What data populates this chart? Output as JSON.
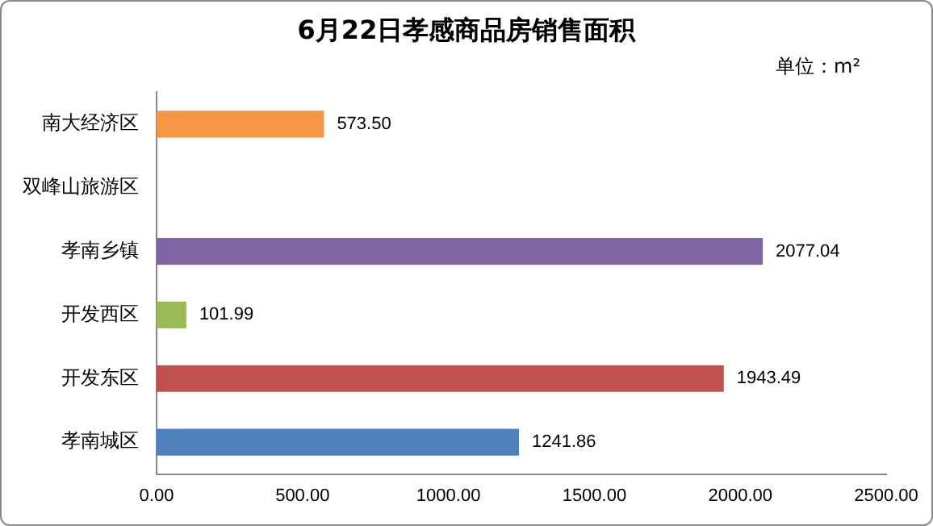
{
  "chart_data": {
    "type": "bar",
    "orientation": "horizontal",
    "title": "6月22日孝感商品房销售面积",
    "annotations": [
      "单位：m²"
    ],
    "categories": [
      "南大经济区",
      "双峰山旅游区",
      "孝南乡镇",
      "开发西区",
      "开发东区",
      "孝南城区"
    ],
    "values": [
      573.5,
      0,
      2077.04,
      101.99,
      1943.49,
      1241.86
    ],
    "colors": [
      "#f79646",
      "#8064a2",
      "#8064a2",
      "#9bbb59",
      "#c0504d",
      "#4f81bd"
    ],
    "value_labels": [
      "573.50",
      null,
      "2077.04",
      "101.99",
      "1943.49",
      "1241.86"
    ],
    "xlim": [
      0,
      2500
    ],
    "xticks": [
      {
        "value": 0,
        "label": "0.00"
      },
      {
        "value": 500,
        "label": "500.00"
      },
      {
        "value": 1000,
        "label": "1000.00"
      },
      {
        "value": 1500,
        "label": "1500.00"
      },
      {
        "value": 2000,
        "label": "2000.00"
      },
      {
        "value": 2500,
        "label": "2500.00"
      }
    ],
    "grid": false,
    "legend": false
  }
}
